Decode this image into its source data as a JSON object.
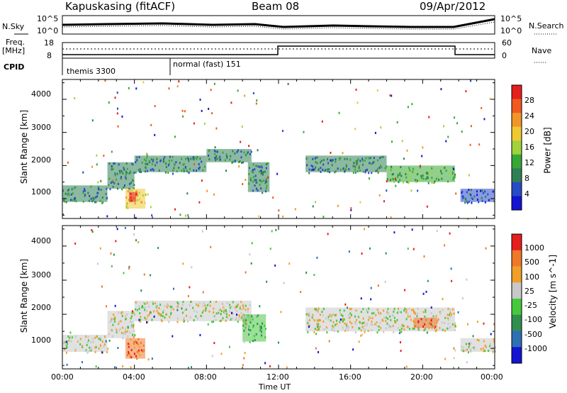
{
  "header": {
    "station": "Kapuskasing (fitACF)",
    "beam": "Beam 08",
    "date": "09/Apr/2012"
  },
  "sky_panel": {
    "left_label": "N.Sky",
    "right_label": "N.Search",
    "left_ticks": [
      "10^5",
      "10^0"
    ],
    "right_ticks": [
      "10^5",
      "10^0"
    ]
  },
  "freq_panel": {
    "left_label_1": "Freq.",
    "left_label_2": "[MHz]",
    "right_label": "Nave",
    "left_ticks": [
      "18",
      "8"
    ],
    "right_ticks": [
      "60",
      "0"
    ]
  },
  "cpid_panel": {
    "label": "CPID",
    "modes": [
      "themis 3300",
      "normal (fast) 151"
    ]
  },
  "colors": {
    "velocity_grey": "#c8c8c8",
    "power_blue": "#2832d2",
    "power_green": "#3cb43c",
    "velocity_orange": "#f08c1e"
  },
  "chart_data": [
    {
      "type": "heatmap",
      "name": "power",
      "ylabel": "Slant Range [km]",
      "yticks": [
        "4000",
        "3000",
        "2000",
        "1000"
      ],
      "ylim": [
        400,
        4600
      ],
      "xlim": [
        0,
        24
      ],
      "colorbar_label": "Power [dB]",
      "colorbar_ticks": [
        "28",
        "24",
        "20",
        "16",
        "12",
        "8",
        "4"
      ],
      "colorbar_colors": [
        "#1414d2",
        "#284bc8",
        "#2f7f55",
        "#36a836",
        "#a0d23c",
        "#f0c832",
        "#f09628",
        "#f05a1e",
        "#e61e1e"
      ],
      "regions": [
        {
          "t0": 0.0,
          "t1": 2.5,
          "r0": 900,
          "r1": 1400,
          "level": 2
        },
        {
          "t0": 2.5,
          "t1": 4.0,
          "r0": 1300,
          "r1": 2100,
          "level": 2
        },
        {
          "t0": 3.5,
          "t1": 4.6,
          "r0": 700,
          "r1": 1300,
          "level": 5
        },
        {
          "t0": 3.7,
          "t1": 4.1,
          "r0": 900,
          "r1": 1200,
          "level": 8
        },
        {
          "t0": 4.0,
          "t1": 8.0,
          "r0": 1800,
          "r1": 2300,
          "level": 2
        },
        {
          "t0": 8.0,
          "t1": 10.5,
          "r0": 2100,
          "r1": 2500,
          "level": 2
        },
        {
          "t0": 10.3,
          "t1": 11.5,
          "r0": 1200,
          "r1": 2100,
          "level": 2
        },
        {
          "t0": 13.5,
          "t1": 18.0,
          "r0": 1800,
          "r1": 2300,
          "level": 2
        },
        {
          "t0": 18.0,
          "t1": 21.8,
          "r0": 1500,
          "r1": 2000,
          "level": 3
        },
        {
          "t0": 22.1,
          "t1": 24.0,
          "r0": 900,
          "r1": 1300,
          "level": 1
        }
      ]
    },
    {
      "type": "heatmap",
      "name": "velocity",
      "ylabel": "Slant Range [km]",
      "yticks": [
        "4000",
        "3000",
        "2000",
        "1000"
      ],
      "ylim": [
        400,
        4600
      ],
      "xlim": [
        0,
        24
      ],
      "xlabel": "Time UT",
      "xticks": [
        "00:00",
        "04:00",
        "08:00",
        "12:00",
        "16:00",
        "20:00",
        "00:00"
      ],
      "colorbar_label": "Velocity [m s^-1]",
      "colorbar_ticks": [
        "1000",
        "500",
        "100",
        "25",
        "-25",
        "-100",
        "-500",
        "-1000"
      ],
      "colorbar_colors": [
        "#1414d2",
        "#2f6fb4",
        "#2f8f4f",
        "#46c83c",
        "#c8c8c8",
        "#f0a028",
        "#f07828",
        "#e61e1e"
      ],
      "regions": [
        {
          "t0": 0.0,
          "t1": 2.5,
          "r0": 900,
          "r1": 1400,
          "level": 4
        },
        {
          "t0": 2.5,
          "t1": 4.0,
          "r0": 1300,
          "r1": 2100,
          "level": 4
        },
        {
          "t0": 3.5,
          "t1": 4.6,
          "r0": 700,
          "r1": 1300,
          "level": 6
        },
        {
          "t0": 4.0,
          "t1": 10.5,
          "r0": 1800,
          "r1": 2400,
          "level": 4
        },
        {
          "t0": 10.0,
          "t1": 11.3,
          "r0": 1200,
          "r1": 2000,
          "level": 3
        },
        {
          "t0": 13.5,
          "t1": 21.8,
          "r0": 1500,
          "r1": 2200,
          "level": 4
        },
        {
          "t0": 19.5,
          "t1": 20.8,
          "r0": 1600,
          "r1": 1900,
          "level": 6
        },
        {
          "t0": 22.1,
          "t1": 24.0,
          "r0": 900,
          "r1": 1300,
          "level": 4
        }
      ]
    }
  ]
}
